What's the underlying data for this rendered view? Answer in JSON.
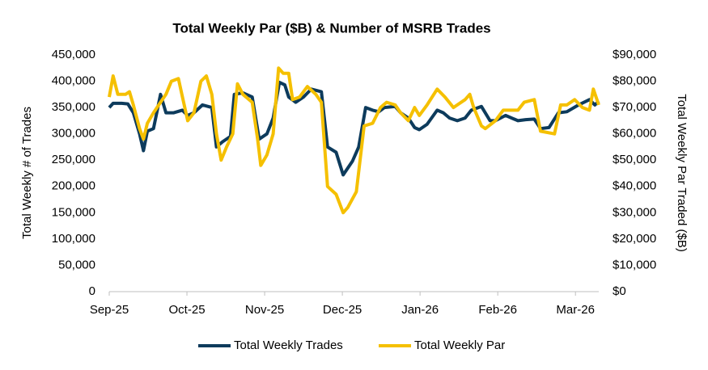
{
  "chart_data": {
    "type": "line",
    "title": "Total Weekly Par ($B) & Number of MSRB Trades",
    "y_label": "Total Weekly # of Trades",
    "y2_label": "Total Weekly Par Traded ($B)",
    "xlim": [
      0,
      6.3
    ],
    "xticks": [
      {
        "value": 0,
        "label": "Sep-25"
      },
      {
        "value": 1,
        "label": "Oct-25"
      },
      {
        "value": 2,
        "label": "Nov-25"
      },
      {
        "value": 3,
        "label": "Dec-25"
      },
      {
        "value": 4,
        "label": "Jan-26"
      },
      {
        "value": 5,
        "label": "Feb-26"
      },
      {
        "value": 6,
        "label": "Mar-26"
      }
    ],
    "ylim": [
      0,
      450000
    ],
    "yticks": [
      0,
      {
        "value": 50000,
        "label": "50,000"
      },
      {
        "value": 100000,
        "label": "100,000"
      },
      {
        "value": 150000,
        "label": "150,000"
      },
      {
        "value": 200000,
        "label": "200,000"
      },
      {
        "value": 250000,
        "label": "250,000"
      },
      {
        "value": 300000,
        "label": "300,000"
      },
      {
        "value": 350000,
        "label": "350,000"
      },
      {
        "value": 400000,
        "label": "400,000"
      },
      {
        "value": 450000,
        "label": "450,000"
      }
    ],
    "y2lim": [
      0,
      90000
    ],
    "y2ticks": [
      {
        "value": 0,
        "label": "$0"
      },
      {
        "value": 10000,
        "label": "$10,000"
      },
      {
        "value": 20000,
        "label": "$20,000"
      },
      {
        "value": 30000,
        "label": "$30,000"
      },
      {
        "value": 40000,
        "label": "$40,000"
      },
      {
        "value": 50000,
        "label": "$50,000"
      },
      {
        "value": 60000,
        "label": "$60,000"
      },
      {
        "value": 70000,
        "label": "$70,000"
      },
      {
        "value": 80000,
        "label": "$80,000"
      },
      {
        "value": 90000,
        "label": "$90,000"
      }
    ],
    "grid": false,
    "legend": "bottom",
    "series": [
      {
        "name": "Total Weekly Trades",
        "color": "#0d3b5c",
        "x": [
          0,
          0.05,
          0.16,
          0.24,
          0.31,
          0.39,
          0.44,
          0.49,
          0.57,
          0.66,
          0.73,
          0.83,
          0.94,
          1.01,
          1.09,
          1.2,
          1.32,
          1.38,
          1.46,
          1.56,
          1.61,
          1.72,
          1.84,
          1.93,
          2.03,
          2.11,
          2.19,
          2.26,
          2.31,
          2.4,
          2.5,
          2.6,
          2.73,
          2.81,
          2.92,
          3.01,
          3.13,
          3.21,
          3.3,
          3.39,
          3.47,
          3.54,
          3.68,
          3.75,
          3.85,
          3.93,
          3.99,
          4.09,
          4.22,
          4.3,
          4.38,
          4.48,
          4.58,
          4.66,
          4.79,
          4.9,
          4.97,
          5.1,
          5.26,
          5.36,
          5.47,
          5.55,
          5.66,
          5.78,
          5.89,
          6.04,
          6.18,
          6.25,
          6.3
        ],
        "values": [
          350000,
          358000,
          358000,
          357000,
          340000,
          300000,
          268000,
          305000,
          310000,
          375000,
          340000,
          340000,
          345000,
          335000,
          340000,
          355000,
          350000,
          275000,
          285000,
          295000,
          375000,
          378000,
          370000,
          290000,
          300000,
          330000,
          398000,
          393000,
          370000,
          360000,
          370000,
          385000,
          380000,
          275000,
          265000,
          222000,
          248000,
          275000,
          350000,
          345000,
          342000,
          350000,
          352000,
          340000,
          330000,
          312000,
          308000,
          318000,
          345000,
          340000,
          330000,
          325000,
          330000,
          345000,
          352000,
          325000,
          325000,
          335000,
          325000,
          327000,
          328000,
          310000,
          312000,
          340000,
          342000,
          355000,
          365000,
          355000,
          362000
        ]
      },
      {
        "name": "Total Weekly Par",
        "color": "#f5c000",
        "axis": "y2",
        "x": [
          0,
          0.05,
          0.11,
          0.21,
          0.26,
          0.31,
          0.39,
          0.44,
          0.49,
          0.57,
          0.66,
          0.73,
          0.8,
          0.89,
          0.95,
          1.01,
          1.09,
          1.18,
          1.25,
          1.32,
          1.38,
          1.44,
          1.51,
          1.59,
          1.65,
          1.72,
          1.84,
          1.91,
          1.95,
          2.03,
          2.11,
          2.18,
          2.24,
          2.31,
          2.36,
          2.45,
          2.55,
          2.66,
          2.73,
          2.81,
          2.92,
          3.01,
          3.07,
          3.18,
          3.28,
          3.39,
          3.49,
          3.57,
          3.68,
          3.75,
          3.85,
          3.93,
          3.99,
          4.09,
          4.22,
          4.32,
          4.43,
          4.58,
          4.64,
          4.69,
          4.79,
          4.84,
          4.97,
          5.07,
          5.16,
          5.26,
          5.34,
          5.47,
          5.55,
          5.73,
          5.81,
          5.89,
          5.99,
          6.09,
          6.18,
          6.23,
          6.3
        ],
        "values": [
          74000,
          82000,
          75000,
          75000,
          76000,
          71000,
          62000,
          58000,
          64000,
          68000,
          72000,
          75000,
          80000,
          81000,
          73000,
          65000,
          68000,
          80000,
          82000,
          75000,
          60000,
          50000,
          55000,
          60000,
          79000,
          75000,
          72000,
          58000,
          48000,
          52000,
          60000,
          85000,
          83000,
          83000,
          73000,
          74000,
          78000,
          75000,
          72000,
          40000,
          37000,
          30000,
          32000,
          38000,
          63000,
          64000,
          70000,
          72000,
          71000,
          68000,
          65000,
          70000,
          67000,
          71000,
          77000,
          74000,
          70000,
          73000,
          75000,
          70000,
          63000,
          62000,
          65000,
          69000,
          69000,
          69000,
          72000,
          73000,
          61000,
          60000,
          71000,
          71000,
          73000,
          70000,
          69000,
          77000,
          71000
        ]
      }
    ]
  }
}
